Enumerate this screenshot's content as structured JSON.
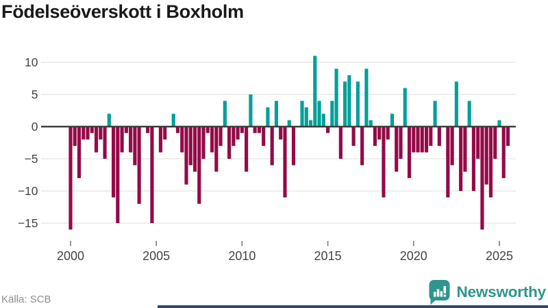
{
  "title": "Födelseöverskott i Boxholm",
  "source": "Källa: SCB",
  "branding": {
    "name": "Newsworthy"
  },
  "colors": {
    "positive": "#00a099",
    "negative": "#940a47",
    "brand": "#2e968e",
    "grid": "#e9e9e9",
    "zero_line": "#3d3d3d",
    "axis_text": "#444444",
    "tick_mark": "#7b7b7b",
    "title_text": "#191919",
    "source_text": "#8c8c8c",
    "bottom_strip": "#2b4a6d"
  },
  "chart_data": {
    "type": "bar",
    "title": "Födelseöverskott i Boxholm",
    "frequency": "quarterly",
    "first_period": "2000 Q1",
    "last_period": "2025 Q3",
    "ylim": [
      -17,
      12
    ],
    "grid": true,
    "legend": "none",
    "y_ticks": [
      {
        "label": "10",
        "value": 10
      },
      {
        "label": "5",
        "value": 5
      },
      {
        "label": "0",
        "value": 0
      },
      {
        "label": "−5",
        "value": -5
      },
      {
        "label": "−10",
        "value": -10
      },
      {
        "label": "−15",
        "value": -15
      }
    ],
    "x_ticks": [
      "2000",
      "2005",
      "2010",
      "2015",
      "2020",
      "2025"
    ],
    "series": [
      {
        "name": "Födelseöverskott",
        "values_by_year": [
          {
            "year": 2000,
            "quarterly": [
              -16,
              -3,
              -8,
              -2
            ]
          },
          {
            "year": 2001,
            "quarterly": [
              -2,
              -1,
              -4,
              -2
            ]
          },
          {
            "year": 2002,
            "quarterly": [
              -5,
              2,
              -11,
              -15
            ]
          },
          {
            "year": 2003,
            "quarterly": [
              -4,
              -1,
              -4,
              -6
            ]
          },
          {
            "year": 2004,
            "quarterly": [
              -12,
              0,
              -1,
              -15
            ]
          },
          {
            "year": 2005,
            "quarterly": [
              0,
              -4,
              -2,
              0
            ]
          },
          {
            "year": 2006,
            "quarterly": [
              2,
              -1,
              -4,
              -9
            ]
          },
          {
            "year": 2007,
            "quarterly": [
              -6,
              -7,
              -12,
              -5
            ]
          },
          {
            "year": 2008,
            "quarterly": [
              -1,
              -4,
              -7,
              -3
            ]
          },
          {
            "year": 2009,
            "quarterly": [
              4,
              -5,
              -3,
              -2
            ]
          },
          {
            "year": 2010,
            "quarterly": [
              -1,
              -7,
              5,
              -1
            ]
          },
          {
            "year": 2011,
            "quarterly": [
              -1,
              -3,
              3,
              -6
            ]
          },
          {
            "year": 2012,
            "quarterly": [
              4,
              -2,
              -11,
              1
            ]
          },
          {
            "year": 2013,
            "quarterly": [
              -6,
              0,
              4,
              3
            ]
          },
          {
            "year": 2014,
            "quarterly": [
              1,
              11,
              4,
              2
            ]
          },
          {
            "year": 2015,
            "quarterly": [
              -1,
              4,
              9,
              -5
            ]
          },
          {
            "year": 2016,
            "quarterly": [
              7,
              8,
              -3,
              7
            ]
          },
          {
            "year": 2017,
            "quarterly": [
              -6,
              9,
              1,
              -3
            ]
          },
          {
            "year": 2018,
            "quarterly": [
              -2,
              -11,
              -2,
              2
            ]
          },
          {
            "year": 2019,
            "quarterly": [
              -7,
              -5,
              6,
              -8
            ]
          },
          {
            "year": 2020,
            "quarterly": [
              -4,
              -4,
              -4,
              -4
            ]
          },
          {
            "year": 2021,
            "quarterly": [
              -3,
              4,
              -3,
              0
            ]
          },
          {
            "year": 2022,
            "quarterly": [
              -11,
              -6,
              7,
              -10
            ]
          },
          {
            "year": 2023,
            "quarterly": [
              -7,
              4,
              -10,
              -5
            ]
          },
          {
            "year": 2024,
            "quarterly": [
              -16,
              -9,
              -11,
              -5
            ]
          },
          {
            "year": 2025,
            "quarterly": [
              1,
              -8,
              -3
            ]
          }
        ]
      }
    ]
  }
}
